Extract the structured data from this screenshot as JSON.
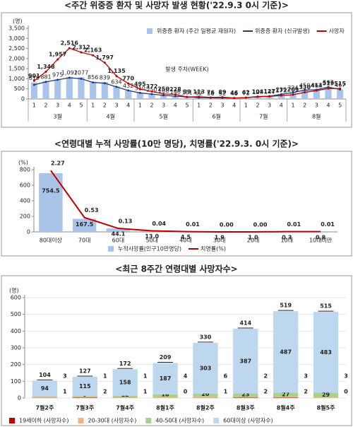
{
  "chart_data": [
    {
      "type": "combo",
      "title": "<주간 위중증 환자 및 사망자 발생 현황('22.9.3 0시 기준)>",
      "y_unit": "(명)",
      "x_label": "발생 주차(WEEK)",
      "groups": [
        {
          "label": "3월",
          "categories": [
            "1",
            "2",
            "3",
            "4",
            "5"
          ]
        },
        {
          "label": "4월",
          "categories": [
            "1",
            "2",
            "3",
            "4"
          ]
        },
        {
          "label": "5월",
          "categories": [
            "1",
            "2",
            "3",
            "4",
            "5"
          ]
        },
        {
          "label": "6월",
          "categories": [
            "1",
            "2",
            "3",
            "4"
          ]
        },
        {
          "label": "7월",
          "categories": [
            "1",
            "2",
            "3",
            "4"
          ]
        },
        {
          "label": "8월",
          "categories": [
            "1",
            "2",
            "3",
            "4",
            "5"
          ]
        }
      ],
      "series": [
        {
          "name": "위중증 환자 (주간 일평균 재원자)",
          "type": "bar",
          "color": "#a9c4e8",
          "values": [
            819,
            881,
            975,
            1092,
            1077,
            856,
            839,
            634,
            432,
            310,
            250,
            188,
            146,
            101,
            62,
            56,
            52,
            48,
            71,
            127,
            144,
            239,
            324,
            450,
            463,
            597,
            467
          ],
          "value_labels": [
            "819",
            "881",
            "975",
            "1,092",
            "1077",
            "856",
            "839",
            "634",
            "432",
            "310",
            "250",
            "188",
            "146",
            "101",
            "62",
            "56",
            "52",
            "48",
            "71",
            "127",
            "144",
            "239",
            "324",
            "450",
            "463",
            "597",
            "467"
          ]
        },
        {
          "name": "위중증 환자 (신규발생)",
          "type": "line",
          "color": "#1f3d7a",
          "values": [
            700,
            850,
            950,
            1050,
            1000,
            820,
            780,
            600,
            420,
            300,
            240,
            180,
            140,
            100,
            65,
            58,
            50,
            45,
            70,
            120,
            140,
            230,
            320,
            440,
            460,
            590,
            467
          ]
        },
        {
          "name": "사망자",
          "type": "line",
          "color": "#c00000",
          "values": [
            901,
            1348,
            1957,
            2516,
            2312,
            2163,
            1797,
            1135,
            770,
            495,
            372,
            250,
            228,
            99,
            113,
            76,
            89,
            46,
            62,
            104,
            127,
            172,
            209,
            330,
            414,
            519,
            515
          ],
          "value_labels": [
            "901",
            "1,348",
            "1,957",
            "2,516",
            "2,312",
            "2,163",
            "1,797",
            "1,135",
            "770",
            "495",
            "372",
            "250",
            "228",
            "99",
            "113",
            "76",
            "89",
            "46",
            "62",
            "104",
            "127",
            "172",
            "209",
            "330",
            "414",
            "519",
            "515"
          ]
        }
      ],
      "ylim": [
        0,
        3500
      ],
      "yticks": [
        0,
        500,
        {
          "value": 1000,
          "label": "1,000"
        },
        {
          "value": 1500,
          "label": "1,500"
        },
        {
          "value": 2000,
          "label": "2,000"
        },
        {
          "value": 2500,
          "label": "2,500"
        },
        {
          "value": 3000,
          "label": "3,000"
        },
        {
          "value": 3500,
          "label": "3,500"
        }
      ]
    },
    {
      "type": "combo",
      "title": "<연령대별 누적 사망률(10만 명당), 치명률('22.9.3. 0시 기준)>",
      "y_unit": "(%)",
      "categories": [
        "80대이상",
        "70대",
        "60대",
        "50대",
        "40대",
        "30대",
        "20대",
        "10대",
        "10대미만"
      ],
      "series": [
        {
          "name": "누적사망률(인구10만명당)",
          "type": "bar",
          "color": "#a9c4e8",
          "values": [
            754.5,
            167.5,
            44.1,
            13.0,
            4.5,
            1.9,
            1.0,
            0.3,
            0.8
          ],
          "value_labels": [
            "754.5",
            "167.5",
            "44.1",
            "13.0",
            "4.5",
            "1.9",
            "1.0",
            "0.3",
            "0.8"
          ]
        },
        {
          "name": "치명률(%)",
          "type": "line",
          "color": "#c00000",
          "axis": "y2",
          "values": [
            2.27,
            0.53,
            0.13,
            0.04,
            0.01,
            0.0,
            0.0,
            0.01,
            0.01
          ],
          "value_labels": [
            "2.27",
            "0.53",
            "0.13",
            "0.04",
            "0.01",
            "0.00",
            "0.00",
            "0.01",
            "0.01"
          ]
        }
      ],
      "ylim": [
        0,
        800
      ],
      "yticks": [
        0,
        200,
        400,
        600,
        800
      ],
      "y2lim": [
        0,
        2.3
      ]
    },
    {
      "type": "stacked_bar",
      "title": "<최근 8주간 연령대별 사망자수>",
      "y_unit": "(명)",
      "categories": [
        "7월2주",
        "7월3주",
        "7월4주",
        "8월1주",
        "8월2주",
        "8월3주",
        "8월4주",
        "8월5주"
      ],
      "series": [
        {
          "name": "19세이하 (사망자수)",
          "color": "#c00000",
          "values": [
            1,
            2,
            1,
            0,
            1,
            2,
            2,
            0
          ]
        },
        {
          "name": "20-30대 (사망자수)",
          "color": "#f4b183",
          "values": [
            3,
            1,
            1,
            4,
            6,
            2,
            3,
            3
          ]
        },
        {
          "name": "40-50대 (사망자수)",
          "color": "#a9d18e",
          "values": [
            6,
            9,
            12,
            18,
            20,
            23,
            27,
            29
          ]
        },
        {
          "name": "60대이상 (사망자수)",
          "color": "#bdd7ee",
          "values": [
            94,
            115,
            158,
            187,
            303,
            387,
            487,
            483
          ]
        }
      ],
      "totals": [
        104,
        127,
        172,
        209,
        330,
        414,
        519,
        515
      ],
      "ylim": [
        0,
        600
      ],
      "yticks": [
        0,
        100,
        200,
        300,
        400,
        500,
        600
      ]
    }
  ]
}
